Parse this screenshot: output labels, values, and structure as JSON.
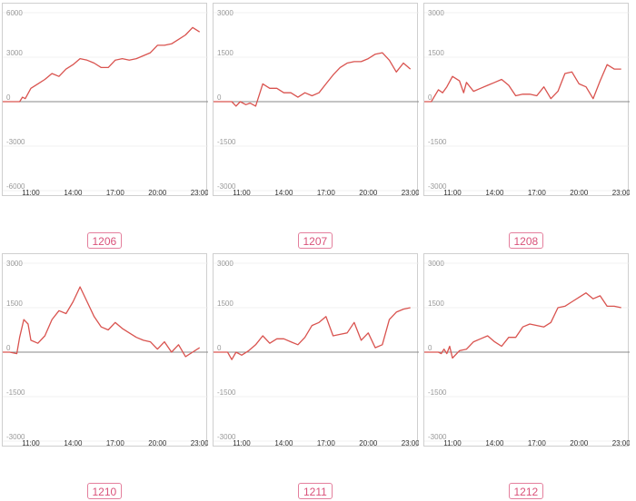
{
  "colors": {
    "line": "#d9534f",
    "grid": "#eeeeee",
    "zero": "#888888",
    "tag": "#d9527a"
  },
  "chart_data": [
    {
      "type": "line",
      "label": "1206",
      "ylim": [
        -6000,
        6000
      ],
      "yticks": [
        "6000",
        "3000",
        "0",
        "-3000",
        "-6000"
      ],
      "yticks_values": [
        6000,
        3000,
        0,
        -3000,
        -6000
      ],
      "xticks": [
        "11:00",
        "14:00",
        "17:00",
        "20:00",
        "23:00"
      ],
      "x": [
        9,
        9.5,
        10,
        10.2,
        10.4,
        10.6,
        11,
        11.5,
        12,
        12.5,
        13,
        13.5,
        14,
        14.5,
        15,
        15.5,
        16,
        16.5,
        17,
        17.5,
        18,
        18.5,
        19,
        19.5,
        20,
        20.5,
        21,
        21.5,
        22,
        22.5,
        23
      ],
      "y": [
        0,
        0,
        0,
        0,
        300,
        200,
        900,
        1200,
        1500,
        1900,
        1700,
        2200,
        2500,
        2900,
        2800,
        2600,
        2300,
        2300,
        2800,
        2900,
        2800,
        2900,
        3100,
        3300,
        3800,
        3800,
        3900,
        4200,
        4500,
        5000,
        4700
      ]
    },
    {
      "type": "line",
      "label": "1207",
      "ylim": [
        -3000,
        3000
      ],
      "yticks": [
        "3000",
        "1500",
        "0",
        "-1500",
        "-3000"
      ],
      "yticks_values": [
        3000,
        1500,
        0,
        -1500,
        -3000
      ],
      "xticks": [
        "11:00",
        "14:00",
        "17:00",
        "20:00",
        "23:00"
      ],
      "x": [
        9,
        9.5,
        10,
        10.3,
        10.6,
        10.9,
        11.3,
        11.6,
        12,
        12.5,
        13,
        13.5,
        14,
        14.5,
        15,
        15.5,
        16,
        16.5,
        17,
        17.5,
        18,
        18.5,
        19,
        19.5,
        20,
        20.5,
        21,
        21.5,
        22,
        22.5,
        23
      ],
      "y": [
        0,
        0,
        0,
        0,
        -150,
        0,
        -100,
        -50,
        -150,
        600,
        450,
        450,
        300,
        300,
        150,
        300,
        200,
        300,
        600,
        900,
        1150,
        1300,
        1350,
        1350,
        1450,
        1600,
        1650,
        1400,
        1000,
        1300,
        1100
      ]
    },
    {
      "type": "line",
      "label": "1208",
      "ylim": [
        -3000,
        3000
      ],
      "yticks": [
        "3000",
        "1500",
        "0",
        "-1500",
        "-3000"
      ],
      "yticks_values": [
        3000,
        1500,
        0,
        -1500,
        -3000
      ],
      "xticks": [
        "11:00",
        "14:00",
        "17:00",
        "20:00",
        "23:00"
      ],
      "x": [
        9,
        9.5,
        10,
        10.3,
        10.6,
        11,
        11.5,
        11.8,
        12,
        12.5,
        13,
        13.5,
        14,
        14.5,
        15,
        15.5,
        16,
        16.5,
        17,
        17.5,
        18,
        18.5,
        19,
        19.5,
        20,
        20.5,
        21,
        21.5,
        22,
        22.5,
        23
      ],
      "y": [
        0,
        0,
        400,
        300,
        500,
        850,
        700,
        300,
        650,
        350,
        450,
        550,
        650,
        750,
        550,
        200,
        250,
        250,
        200,
        500,
        100,
        350,
        950,
        1000,
        600,
        500,
        100,
        700,
        1250,
        1100,
        1100
      ]
    },
    {
      "type": "line",
      "label": "1210",
      "ylim": [
        -3000,
        3000
      ],
      "yticks": [
        "3000",
        "1500",
        "0",
        "-1500",
        "-3000"
      ],
      "yticks_values": [
        3000,
        1500,
        0,
        -1500,
        -3000
      ],
      "xticks": [
        "11:00",
        "14:00",
        "17:00",
        "20:00",
        "23:00"
      ],
      "x": [
        9,
        9.5,
        10,
        10.2,
        10.5,
        10.8,
        11,
        11.5,
        12,
        12.5,
        13,
        13.5,
        14,
        14.5,
        15,
        15.5,
        16,
        16.5,
        17,
        17.5,
        18,
        18.5,
        19,
        19.5,
        20,
        20.5,
        21,
        21.5,
        22,
        22.5,
        23
      ],
      "y": [
        0,
        0,
        -50,
        500,
        1100,
        950,
        400,
        300,
        550,
        1100,
        1400,
        1300,
        1700,
        2200,
        1700,
        1200,
        850,
        750,
        1000,
        800,
        650,
        500,
        400,
        350,
        100,
        350,
        0,
        250,
        -150,
        0,
        150
      ]
    },
    {
      "type": "line",
      "label": "1211",
      "ylim": [
        -3000,
        3000
      ],
      "yticks": [
        "3000",
        "1500",
        "0",
        "-1500",
        "-3000"
      ],
      "yticks_values": [
        3000,
        1500,
        0,
        -1500,
        -3000
      ],
      "xticks": [
        "11:00",
        "14:00",
        "17:00",
        "20:00",
        "23:00"
      ],
      "x": [
        9,
        9.5,
        10,
        10.3,
        10.6,
        11,
        11.5,
        12,
        12.5,
        13,
        13.5,
        14,
        14.5,
        15,
        15.5,
        16,
        16.5,
        17,
        17.5,
        18,
        18.5,
        19,
        19.5,
        20,
        20.5,
        21,
        21.5,
        22,
        22.5,
        23
      ],
      "y": [
        0,
        0,
        0,
        -250,
        0,
        -100,
        50,
        250,
        550,
        300,
        450,
        450,
        350,
        250,
        500,
        900,
        1000,
        1200,
        550,
        600,
        650,
        1000,
        400,
        650,
        150,
        250,
        1100,
        1350,
        1450,
        1500
      ]
    },
    {
      "type": "line",
      "label": "1212",
      "ylim": [
        -3000,
        3000
      ],
      "yticks": [
        "3000",
        "1500",
        "0",
        "-1500",
        "-3000"
      ],
      "yticks_values": [
        3000,
        1500,
        0,
        -1500,
        -3000
      ],
      "xticks": [
        "11:00",
        "14:00",
        "17:00",
        "20:00",
        "23:00"
      ],
      "x": [
        9,
        9.5,
        10,
        10.2,
        10.4,
        10.6,
        10.8,
        11,
        11.5,
        12,
        12.5,
        13,
        13.5,
        14,
        14.5,
        15,
        15.5,
        16,
        16.5,
        17,
        17.5,
        18,
        18.5,
        19,
        19.5,
        20,
        20.5,
        21,
        21.5,
        22,
        22.5,
        23
      ],
      "y": [
        0,
        0,
        0,
        -50,
        100,
        -50,
        200,
        -200,
        50,
        100,
        350,
        450,
        550,
        350,
        200,
        500,
        500,
        850,
        950,
        900,
        850,
        1000,
        1500,
        1550,
        1700,
        1850,
        2000,
        1800,
        1900,
        1550,
        1550,
        1500
      ]
    }
  ]
}
